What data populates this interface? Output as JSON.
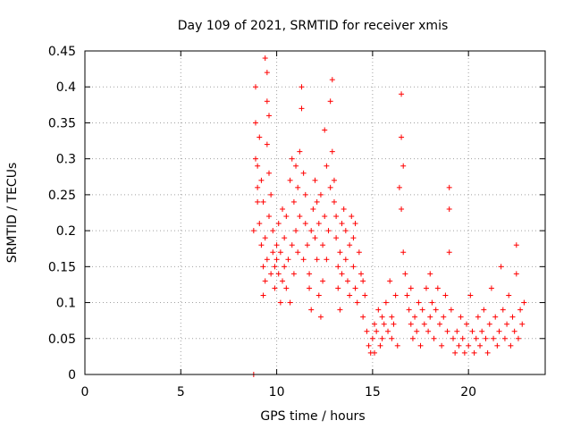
{
  "chart_data": {
    "type": "scatter",
    "title": "Day 109 of 2021, SRMTID for receiver xmis",
    "xlabel": "GPS time / hours",
    "ylabel": "SRMTID / TECUs",
    "xlim": [
      0,
      24
    ],
    "ylim": [
      0,
      0.45
    ],
    "x_ticks": [
      0,
      5,
      10,
      15,
      20
    ],
    "x_tick_labels": [
      "0",
      "5",
      "10",
      "15",
      "20"
    ],
    "y_ticks": [
      0,
      0.05,
      0.1,
      0.15,
      0.2,
      0.25,
      0.3,
      0.35,
      0.4,
      0.45
    ],
    "y_tick_labels": [
      "0",
      "0.05",
      "0.1",
      "0.15",
      "0.2",
      "0.25",
      "0.3",
      "0.35",
      "0.4",
      "0.45"
    ],
    "grid": true,
    "series": [
      {
        "name": "SRMTID",
        "color": "#ff0000",
        "marker": "plus",
        "points": [
          [
            8.8,
            0.0
          ],
          [
            8.8,
            0.2
          ],
          [
            8.9,
            0.4
          ],
          [
            8.9,
            0.35
          ],
          [
            8.9,
            0.3
          ],
          [
            9.0,
            0.26
          ],
          [
            9.0,
            0.29
          ],
          [
            9.0,
            0.24
          ],
          [
            9.1,
            0.21
          ],
          [
            9.1,
            0.33
          ],
          [
            9.2,
            0.18
          ],
          [
            9.2,
            0.27
          ],
          [
            9.3,
            0.15
          ],
          [
            9.3,
            0.11
          ],
          [
            9.3,
            0.24
          ],
          [
            9.4,
            0.44
          ],
          [
            9.4,
            0.19
          ],
          [
            9.4,
            0.13
          ],
          [
            9.5,
            0.42
          ],
          [
            9.5,
            0.38
          ],
          [
            9.5,
            0.32
          ],
          [
            9.5,
            0.16
          ],
          [
            9.6,
            0.36
          ],
          [
            9.6,
            0.22
          ],
          [
            9.6,
            0.28
          ],
          [
            9.7,
            0.14
          ],
          [
            9.7,
            0.25
          ],
          [
            9.8,
            0.2
          ],
          [
            9.8,
            0.17
          ],
          [
            9.9,
            0.15
          ],
          [
            9.9,
            0.12
          ],
          [
            10.0,
            0.18
          ],
          [
            10.0,
            0.16
          ],
          [
            10.1,
            0.21
          ],
          [
            10.1,
            0.14
          ],
          [
            10.2,
            0.1
          ],
          [
            10.2,
            0.17
          ],
          [
            10.3,
            0.13
          ],
          [
            10.3,
            0.23
          ],
          [
            10.4,
            0.19
          ],
          [
            10.4,
            0.15
          ],
          [
            10.5,
            0.12
          ],
          [
            10.5,
            0.22
          ],
          [
            10.6,
            0.16
          ],
          [
            10.7,
            0.1
          ],
          [
            10.7,
            0.27
          ],
          [
            10.8,
            0.18
          ],
          [
            10.8,
            0.3
          ],
          [
            10.9,
            0.24
          ],
          [
            10.9,
            0.14
          ],
          [
            11.0,
            0.29
          ],
          [
            11.0,
            0.2
          ],
          [
            11.1,
            0.26
          ],
          [
            11.1,
            0.17
          ],
          [
            11.2,
            0.22
          ],
          [
            11.2,
            0.31
          ],
          [
            11.3,
            0.4
          ],
          [
            11.3,
            0.37
          ],
          [
            11.4,
            0.28
          ],
          [
            11.4,
            0.16
          ],
          [
            11.5,
            0.25
          ],
          [
            11.5,
            0.21
          ],
          [
            11.6,
            0.18
          ],
          [
            11.7,
            0.14
          ],
          [
            11.7,
            0.12
          ],
          [
            11.8,
            0.09
          ],
          [
            11.8,
            0.2
          ],
          [
            11.9,
            0.23
          ],
          [
            12.0,
            0.19
          ],
          [
            12.0,
            0.27
          ],
          [
            12.1,
            0.24
          ],
          [
            12.1,
            0.16
          ],
          [
            12.2,
            0.21
          ],
          [
            12.2,
            0.11
          ],
          [
            12.3,
            0.25
          ],
          [
            12.3,
            0.08
          ],
          [
            12.4,
            0.18
          ],
          [
            12.4,
            0.13
          ],
          [
            12.5,
            0.34
          ],
          [
            12.5,
            0.22
          ],
          [
            12.6,
            0.29
          ],
          [
            12.6,
            0.16
          ],
          [
            12.7,
            0.2
          ],
          [
            12.8,
            0.26
          ],
          [
            12.8,
            0.38
          ],
          [
            12.9,
            0.41
          ],
          [
            12.9,
            0.31
          ],
          [
            13.0,
            0.27
          ],
          [
            13.0,
            0.24
          ],
          [
            13.1,
            0.19
          ],
          [
            13.1,
            0.22
          ],
          [
            13.2,
            0.15
          ],
          [
            13.2,
            0.12
          ],
          [
            13.3,
            0.17
          ],
          [
            13.3,
            0.09
          ],
          [
            13.4,
            0.21
          ],
          [
            13.4,
            0.14
          ],
          [
            13.5,
            0.23
          ],
          [
            13.6,
            0.2
          ],
          [
            13.6,
            0.16
          ],
          [
            13.7,
            0.13
          ],
          [
            13.8,
            0.18
          ],
          [
            13.8,
            0.11
          ],
          [
            13.9,
            0.22
          ],
          [
            14.0,
            0.15
          ],
          [
            14.0,
            0.19
          ],
          [
            14.1,
            0.12
          ],
          [
            14.1,
            0.21
          ],
          [
            14.2,
            0.1
          ],
          [
            14.3,
            0.17
          ],
          [
            14.4,
            0.14
          ],
          [
            14.5,
            0.08
          ],
          [
            14.5,
            0.13
          ],
          [
            14.6,
            0.11
          ],
          [
            14.7,
            0.06
          ],
          [
            14.8,
            0.04
          ],
          [
            14.9,
            0.03
          ],
          [
            15.0,
            0.05
          ],
          [
            15.1,
            0.07
          ],
          [
            15.1,
            0.03
          ],
          [
            15.2,
            0.06
          ],
          [
            15.3,
            0.09
          ],
          [
            15.4,
            0.04
          ],
          [
            15.5,
            0.08
          ],
          [
            15.5,
            0.05
          ],
          [
            15.6,
            0.07
          ],
          [
            15.7,
            0.1
          ],
          [
            15.8,
            0.06
          ],
          [
            15.9,
            0.13
          ],
          [
            16.0,
            0.08
          ],
          [
            16.0,
            0.05
          ],
          [
            16.1,
            0.07
          ],
          [
            16.2,
            0.11
          ],
          [
            16.3,
            0.04
          ],
          [
            16.4,
            0.26
          ],
          [
            16.5,
            0.39
          ],
          [
            16.5,
            0.33
          ],
          [
            16.5,
            0.23
          ],
          [
            16.6,
            0.29
          ],
          [
            16.6,
            0.17
          ],
          [
            16.7,
            0.14
          ],
          [
            16.8,
            0.11
          ],
          [
            16.9,
            0.09
          ],
          [
            17.0,
            0.07
          ],
          [
            17.0,
            0.12
          ],
          [
            17.1,
            0.05
          ],
          [
            17.2,
            0.08
          ],
          [
            17.3,
            0.06
          ],
          [
            17.4,
            0.1
          ],
          [
            17.5,
            0.04
          ],
          [
            17.6,
            0.09
          ],
          [
            17.7,
            0.07
          ],
          [
            17.8,
            0.12
          ],
          [
            17.9,
            0.06
          ],
          [
            18.0,
            0.14
          ],
          [
            18.0,
            0.08
          ],
          [
            18.1,
            0.1
          ],
          [
            18.2,
            0.05
          ],
          [
            18.3,
            0.09
          ],
          [
            18.4,
            0.12
          ],
          [
            18.5,
            0.07
          ],
          [
            18.6,
            0.04
          ],
          [
            18.7,
            0.08
          ],
          [
            18.8,
            0.11
          ],
          [
            18.9,
            0.06
          ],
          [
            19.0,
            0.26
          ],
          [
            19.0,
            0.23
          ],
          [
            19.0,
            0.17
          ],
          [
            19.1,
            0.09
          ],
          [
            19.2,
            0.05
          ],
          [
            19.3,
            0.03
          ],
          [
            19.4,
            0.06
          ],
          [
            19.5,
            0.04
          ],
          [
            19.6,
            0.08
          ],
          [
            19.7,
            0.05
          ],
          [
            19.8,
            0.03
          ],
          [
            19.9,
            0.07
          ],
          [
            20.0,
            0.04
          ],
          [
            20.1,
            0.11
          ],
          [
            20.2,
            0.06
          ],
          [
            20.3,
            0.03
          ],
          [
            20.4,
            0.05
          ],
          [
            20.5,
            0.08
          ],
          [
            20.6,
            0.04
          ],
          [
            20.7,
            0.06
          ],
          [
            20.8,
            0.09
          ],
          [
            20.9,
            0.05
          ],
          [
            21.0,
            0.03
          ],
          [
            21.1,
            0.07
          ],
          [
            21.2,
            0.12
          ],
          [
            21.3,
            0.05
          ],
          [
            21.4,
            0.08
          ],
          [
            21.5,
            0.04
          ],
          [
            21.6,
            0.06
          ],
          [
            21.7,
            0.15
          ],
          [
            21.8,
            0.09
          ],
          [
            21.9,
            0.05
          ],
          [
            22.0,
            0.07
          ],
          [
            22.1,
            0.11
          ],
          [
            22.2,
            0.04
          ],
          [
            22.3,
            0.08
          ],
          [
            22.4,
            0.06
          ],
          [
            22.5,
            0.18
          ],
          [
            22.5,
            0.14
          ],
          [
            22.6,
            0.05
          ],
          [
            22.7,
            0.09
          ],
          [
            22.8,
            0.07
          ],
          [
            22.9,
            0.1
          ]
        ]
      }
    ]
  }
}
